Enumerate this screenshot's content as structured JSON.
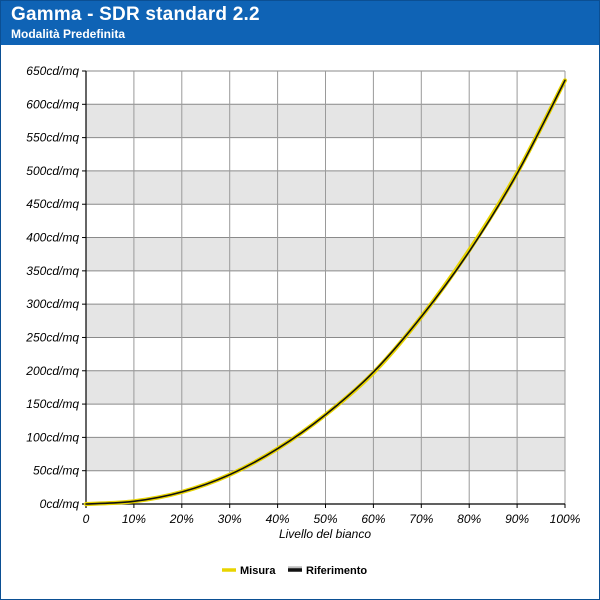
{
  "chart_data": {
    "type": "line",
    "title": "Gamma - SDR standard 2.2",
    "subtitle": "Modalità Predefinita",
    "xlabel": "Livello del bianco",
    "ylabel": "",
    "x_ticks": [
      "0",
      "10%",
      "20%",
      "30%",
      "40%",
      "50%",
      "60%",
      "70%",
      "80%",
      "90%",
      "100%"
    ],
    "y_ticks": [
      "0cd/mq",
      "50cd/mq",
      "100cd/mq",
      "150cd/mq",
      "200cd/mq",
      "250cd/mq",
      "300cd/mq",
      "350cd/mq",
      "400cd/mq",
      "450cd/mq",
      "500cd/mq",
      "550cd/mq",
      "600cd/mq",
      "650cd/mq"
    ],
    "xlim": [
      0,
      100
    ],
    "ylim": [
      0,
      650
    ],
    "grid": true,
    "legend_position": "bottom-center",
    "x": [
      0,
      10,
      20,
      30,
      40,
      50,
      60,
      70,
      80,
      90,
      100
    ],
    "series": [
      {
        "name": "Misura",
        "color": "#e8d400",
        "values": [
          0,
          4,
          18,
          44,
          83,
          134,
          197,
          281,
          381,
          497,
          636
        ]
      },
      {
        "name": "Riferimento",
        "color": "#111111",
        "values": [
          0,
          4,
          18,
          44,
          83,
          134,
          198,
          281,
          379,
          496,
          636
        ]
      }
    ]
  }
}
